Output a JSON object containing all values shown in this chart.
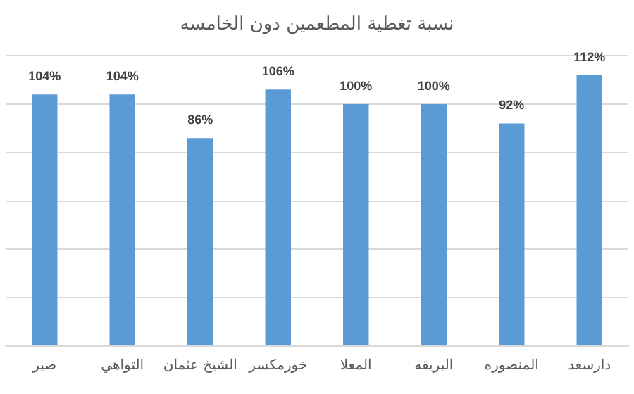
{
  "chart_data": {
    "type": "bar",
    "title": "نسبة تغطية المطعمين دون الخامسه",
    "categories": [
      "صير",
      "التواهي",
      "الشيخ عثمان",
      "خورمكسر",
      "المعلا",
      "البريقه",
      "المنصوره",
      "دارسعد"
    ],
    "values": [
      104,
      104,
      86,
      106,
      100,
      100,
      92,
      112
    ],
    "value_labels": [
      "104%",
      "104%",
      "86%",
      "106%",
      "100%",
      "100%",
      "92%",
      "112%"
    ],
    "color": "#5b9bd5",
    "ylim": [
      0,
      120
    ],
    "yticks": [
      {
        "value": 0,
        "label": null
      },
      {
        "value": 20,
        "label": null
      },
      {
        "value": 40,
        "label": null
      },
      {
        "value": 60,
        "label": null
      },
      {
        "value": 80,
        "label": null
      },
      {
        "value": 100,
        "label": null
      },
      {
        "value": 120,
        "label": null
      }
    ],
    "grid": "y",
    "tick_labels": "x",
    "legend": false
  }
}
